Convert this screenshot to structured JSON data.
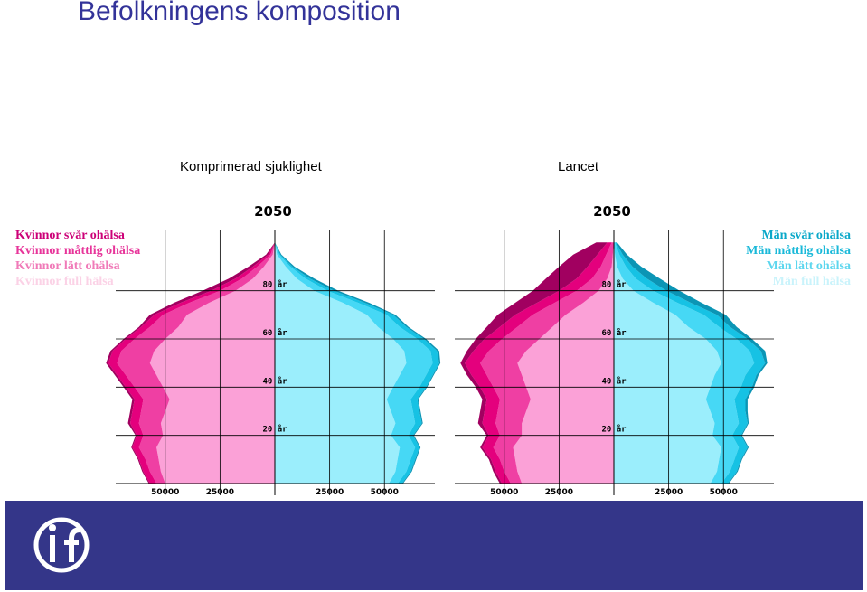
{
  "page": {
    "title": "Befolkningens komposition",
    "subtitle_left": "Komprimerad sjuklighet",
    "subtitle_right": "Lancet"
  },
  "legend_women": [
    {
      "label": "Kvinnor svår ohälsa",
      "color": "#cc0077"
    },
    {
      "label": "Kvinnor måttlig ohälsa",
      "color": "#e7359a"
    },
    {
      "label": "Kvinnor lätt ohälsa",
      "color": "#f07ab8"
    },
    {
      "label": "Kvinnor full hälsa",
      "color": "#fbd2e6"
    }
  ],
  "legend_men": [
    {
      "label": "Män svår ohälsa",
      "color": "#0aa8c9"
    },
    {
      "label": "Män måttlig ohälsa",
      "color": "#1ab9d9"
    },
    {
      "label": "Män lätt ohälsa",
      "color": "#5cd6ee"
    },
    {
      "label": "Män full hälsa",
      "color": "#c9f3fb"
    }
  ],
  "colors": {
    "women": [
      "#fba1d7",
      "#ef3fa3",
      "#e4007d",
      "#a10060"
    ],
    "men": [
      "#9beefc",
      "#46d8f5",
      "#16c2e4",
      "#0b95b5"
    ],
    "brand": "#343689"
  },
  "chart_data": [
    {
      "type": "population-pyramid",
      "title": "2050",
      "scenario": "Komprimerad sjuklighet",
      "age_labels": [
        "20 år",
        "40 år",
        "60 år",
        "80 år"
      ],
      "x_tick_labels": [
        "50000",
        "25000",
        "",
        "25000",
        "50000"
      ],
      "x_ticks": [
        -50000,
        -25000,
        0,
        25000,
        50000
      ],
      "xlim": [
        -73000,
        73000
      ],
      "ylim": [
        0,
        105
      ],
      "ages": [
        0,
        5,
        10,
        15,
        20,
        25,
        30,
        35,
        40,
        45,
        50,
        55,
        60,
        65,
        70,
        75,
        80,
        85,
        90,
        95,
        100
      ],
      "series": [
        {
          "name": "Kvinnor full hälsa",
          "values": [
            -50000,
            -52000,
            -53000,
            -54000,
            -51000,
            -52000,
            -50000,
            -48000,
            -51000,
            -54000,
            -57000,
            -55000,
            -50000,
            -44000,
            -40000,
            -30000,
            -18000,
            -10000,
            -5000,
            -1000,
            0
          ]
        },
        {
          "name": "Kvinnor lätt ohälsa",
          "values": [
            -4000,
            -5000,
            -6000,
            -8000,
            -9000,
            -10000,
            -11000,
            -12000,
            -13000,
            -14000,
            -15000,
            -15000,
            -14000,
            -13000,
            -11000,
            -9000,
            -7000,
            -5000,
            -3000,
            -1000,
            0
          ]
        },
        {
          "name": "Kvinnor måttlig ohälsa",
          "values": [
            -3000,
            -3000,
            -3000,
            -3000,
            -3000,
            -4000,
            -4000,
            -4000,
            -4000,
            -4000,
            -4000,
            -4000,
            -4000,
            -4000,
            -4000,
            -4000,
            -4000,
            -3000,
            -2000,
            -1000,
            0
          ]
        },
        {
          "name": "Kvinnor svår ohälsa",
          "values": [
            -500,
            -500,
            -500,
            -500,
            -500,
            -1000,
            -1000,
            -1000,
            -1000,
            -1000,
            -1000,
            -1000,
            -1000,
            -1000,
            -2000,
            -3000,
            -4000,
            -3000,
            -2000,
            -1000,
            0
          ]
        },
        {
          "name": "Män full hälsa",
          "values": [
            52000,
            55000,
            56000,
            57000,
            53000,
            55000,
            53000,
            51000,
            54000,
            57000,
            60000,
            59000,
            54000,
            47000,
            42000,
            31000,
            18000,
            10000,
            5000,
            1000,
            0
          ]
        },
        {
          "name": "Män lätt ohälsa",
          "values": [
            4000,
            5000,
            6000,
            7000,
            8000,
            9000,
            10000,
            11000,
            12000,
            12000,
            12000,
            12000,
            11000,
            10000,
            9000,
            7000,
            6000,
            4000,
            2000,
            1000,
            0
          ]
        },
        {
          "name": "Män måttlig ohälsa",
          "values": [
            2000,
            2000,
            2000,
            2000,
            2000,
            3000,
            3000,
            3000,
            3000,
            3000,
            3000,
            3000,
            3000,
            3000,
            3000,
            3000,
            3000,
            2000,
            1000,
            500,
            0
          ]
        },
        {
          "name": "Män svår ohälsa",
          "values": [
            500,
            500,
            500,
            500,
            500,
            500,
            500,
            500,
            500,
            500,
            500,
            1000,
            1000,
            1000,
            1000,
            2000,
            2000,
            2000,
            1000,
            500,
            0
          ]
        }
      ]
    },
    {
      "type": "population-pyramid",
      "title": "2050",
      "scenario": "Lancet",
      "age_labels": [
        "20 år",
        "40 år",
        "60 år",
        "80 år"
      ],
      "x_tick_labels": [
        "50000",
        "25000",
        "",
        "25000",
        "50000"
      ],
      "x_ticks": [
        -50000,
        -25000,
        0,
        25000,
        50000
      ],
      "xlim": [
        -73000,
        73000
      ],
      "ylim": [
        0,
        105
      ],
      "ages": [
        0,
        5,
        10,
        15,
        20,
        25,
        30,
        35,
        40,
        45,
        50,
        55,
        60,
        65,
        70,
        75,
        80,
        85,
        90,
        95,
        100
      ],
      "series": [
        {
          "name": "Kvinnor full hälsa",
          "values": [
            -42000,
            -44000,
            -45000,
            -46000,
            -42000,
            -42000,
            -40000,
            -38000,
            -40000,
            -42000,
            -44000,
            -40000,
            -34000,
            -28000,
            -22000,
            -14000,
            -7000,
            -3000,
            -1000,
            -500,
            0
          ]
        },
        {
          "name": "Kvinnor lätt ohälsa",
          "values": [
            -5000,
            -6000,
            -7000,
            -9000,
            -10000,
            -12000,
            -13000,
            -14000,
            -15000,
            -16000,
            -17000,
            -17000,
            -17000,
            -16000,
            -15000,
            -13000,
            -10000,
            -7000,
            -5000,
            -3000,
            -1000
          ]
        },
        {
          "name": "Kvinnor måttlig ohälsa",
          "values": [
            -4000,
            -4000,
            -4000,
            -5000,
            -5000,
            -6000,
            -6000,
            -6000,
            -6000,
            -7000,
            -7000,
            -7000,
            -8000,
            -8000,
            -8000,
            -8000,
            -8000,
            -7000,
            -6000,
            -4000,
            -2000
          ]
        },
        {
          "name": "Kvinnor svår ohälsa",
          "values": [
            -1000,
            -1000,
            -1000,
            -1000,
            -1000,
            -2000,
            -2000,
            -2000,
            -2000,
            -2000,
            -2000,
            -3000,
            -4000,
            -6000,
            -8000,
            -10000,
            -12000,
            -14000,
            -13000,
            -11000,
            -5000
          ]
        },
        {
          "name": "Män full hälsa",
          "values": [
            44000,
            47000,
            48000,
            49000,
            45000,
            46000,
            44000,
            42000,
            44000,
            46000,
            49000,
            47000,
            42000,
            34000,
            28000,
            18000,
            9000,
            4000,
            1500,
            500,
            0
          ]
        },
        {
          "name": "Män lätt ohälsa",
          "values": [
            5000,
            6000,
            7000,
            8000,
            9000,
            11000,
            12000,
            13000,
            14000,
            14000,
            15000,
            15000,
            14000,
            14000,
            13000,
            11000,
            9000,
            6000,
            4000,
            2000,
            500
          ]
        },
        {
          "name": "Män måttlig ohälsa",
          "values": [
            3000,
            3000,
            3000,
            4000,
            4000,
            4000,
            4000,
            5000,
            5000,
            5000,
            5000,
            5000,
            5000,
            5000,
            6000,
            6000,
            6000,
            5000,
            3000,
            1500,
            500
          ]
        },
        {
          "name": "Män svår ohälsa",
          "values": [
            500,
            500,
            500,
            500,
            500,
            500,
            1000,
            1000,
            1000,
            1000,
            1000,
            2000,
            2000,
            3000,
            4000,
            5000,
            6000,
            6000,
            4000,
            2000,
            500
          ]
        }
      ]
    }
  ]
}
